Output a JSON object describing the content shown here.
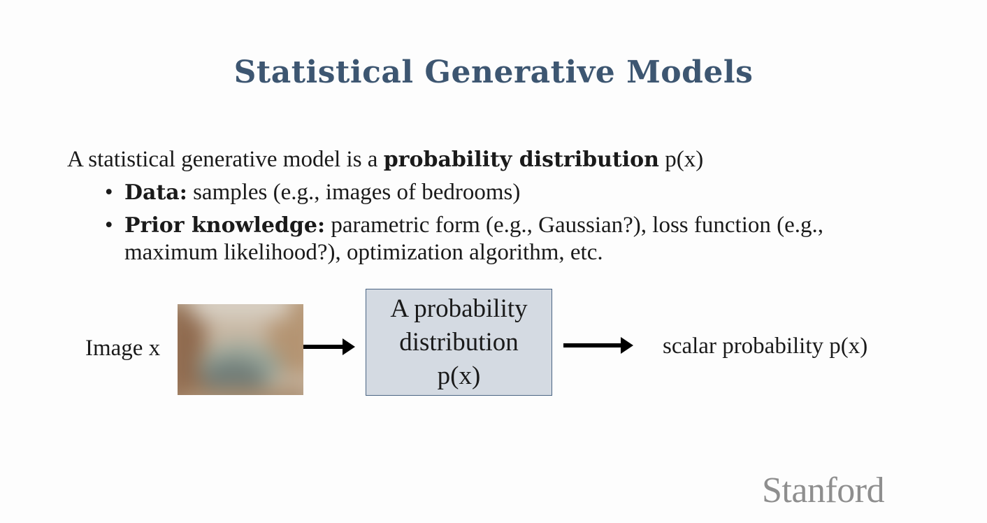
{
  "slide": {
    "title": "Statistical Generative Models",
    "intro_prefix": "A statistical generative model is a ",
    "intro_bold": "probability distribution",
    "intro_suffix": " p(x)",
    "bullets": [
      {
        "marker": "•",
        "label": "Data:",
        "text": " samples (e.g., images of bedrooms)"
      },
      {
        "marker": "•",
        "label": "Prior knowledge:",
        "text": " parametric form (e.g., Gaussian?), loss function (e.g., maximum likelihood?), optimization algorithm, etc."
      }
    ]
  },
  "diagram": {
    "input_label": "Image x",
    "box_lines": [
      "A probability",
      "distribution",
      "p(x)"
    ],
    "output_label": "scalar probability p(x)"
  },
  "branding": {
    "logo_text": "Stanford"
  },
  "colors": {
    "title": "#3d5671",
    "box_fill": "#d4dae2",
    "box_border": "#4a6483",
    "logo": "#8e8e8e"
  }
}
